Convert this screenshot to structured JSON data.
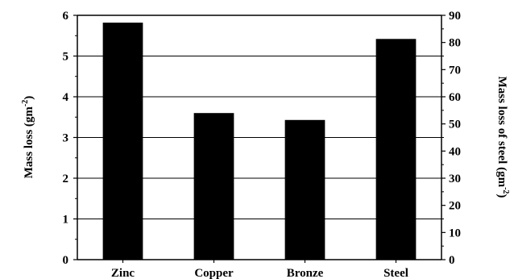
{
  "chart_data": {
    "type": "bar",
    "categories": [
      "Zinc",
      "Copper",
      "Bronze",
      "Steel"
    ],
    "series": [
      {
        "values": [
          5.82,
          3.6,
          3.43,
          5.42
        ]
      }
    ],
    "note_steel_right_axis_value": 81.3,
    "y_left": {
      "label_prefix": "Mass loss (gm",
      "label_sup": "-2",
      "label_suffix": ")",
      "ylim": [
        0,
        6
      ],
      "ticks": [
        0,
        1,
        2,
        3,
        4,
        5,
        6
      ]
    },
    "y_right": {
      "label_prefix": "Mass loss of steel (gm",
      "label_sup": "-2",
      "label_suffix": ")",
      "ylim": [
        0,
        90
      ],
      "ticks": [
        0,
        10,
        20,
        30,
        40,
        50,
        60,
        70,
        80,
        90
      ]
    },
    "grid": true,
    "bar_color": "#000000"
  }
}
